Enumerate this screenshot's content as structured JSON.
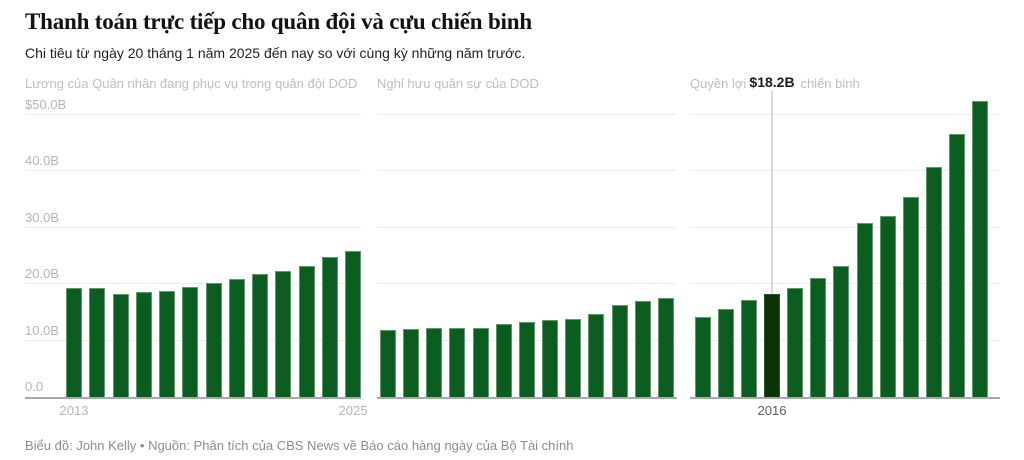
{
  "title": "Thanh toán trực tiếp cho quân đội và cựu chiến binh",
  "subtitle": "Chi tiêu từ ngày 20 tháng 1 năm 2025 đến nay so với cùng kỳ những năm trước.",
  "footer": "Biểu đồ: John Kelly • Nguồn: Phân tích của CBS News về Báo cáo hàng ngày của Bộ Tài chính",
  "colors": {
    "bar": "#0b5e1f",
    "bar_highlight": "#0a3306",
    "gridline": "#ededed",
    "baseline": "#a8a8a8",
    "axis_label": "#b4b4b4",
    "axis_label_emphasis": "#5c5c5c",
    "panel_header": "#bdbdbd",
    "tooltip_text": "#1c1c1c"
  },
  "y_axis": {
    "unit_suffix": "B",
    "ticks": [
      {
        "label": "$50.0B",
        "value": 50
      },
      {
        "label": "40.0B",
        "value": 40
      },
      {
        "label": "30.0B",
        "value": 30
      },
      {
        "label": "20.0B",
        "value": 20
      },
      {
        "label": "10.0B",
        "value": 10
      },
      {
        "label": "0.0",
        "value": 0
      }
    ]
  },
  "chart_data": [
    {
      "type": "bar",
      "title": "Lương của Quân nhân đang phục vụ trong quân đội DOD",
      "categories": [
        2013,
        2014,
        2015,
        2016,
        2017,
        2018,
        2019,
        2020,
        2021,
        2022,
        2023,
        2024,
        2025
      ],
      "values": [
        19.3,
        19.3,
        18.3,
        18.6,
        18.8,
        19.5,
        20.3,
        20.9,
        21.8,
        22.3,
        23.3,
        24.8,
        25.9
      ],
      "ylim": [
        0,
        53.9
      ],
      "x_ticks": [
        {
          "label": "2013",
          "index": 0
        },
        {
          "label": "2025",
          "index": 12
        }
      ]
    },
    {
      "type": "bar",
      "title": "Nghỉ hưu quân sự của DOD",
      "categories": [
        2013,
        2014,
        2015,
        2016,
        2017,
        2018,
        2019,
        2020,
        2021,
        2022,
        2023,
        2024,
        2025
      ],
      "values": [
        11.8,
        12.0,
        12.3,
        12.3,
        12.2,
        13.0,
        13.3,
        13.6,
        13.9,
        14.7,
        16.3,
        17.0,
        17.6
      ],
      "ylim": [
        0,
        53.9
      ],
      "x_ticks": []
    },
    {
      "type": "bar",
      "title": "Quyền lợi của cựu chiến binh",
      "categories": [
        2013,
        2014,
        2015,
        2016,
        2017,
        2018,
        2019,
        2020,
        2021,
        2022,
        2023,
        2024,
        2025
      ],
      "values": [
        14.1,
        15.6,
        17.2,
        18.2,
        19.4,
        21.1,
        23.3,
        30.8,
        32.1,
        35.5,
        40.7,
        46.6,
        52.5
      ],
      "ylim": [
        0,
        53.9
      ],
      "highlight": {
        "index": 3,
        "year": "2016",
        "tooltip": "$18.2B"
      },
      "x_ticks": [
        {
          "label": "2016",
          "index": 3,
          "emphasis": true
        }
      ]
    }
  ]
}
